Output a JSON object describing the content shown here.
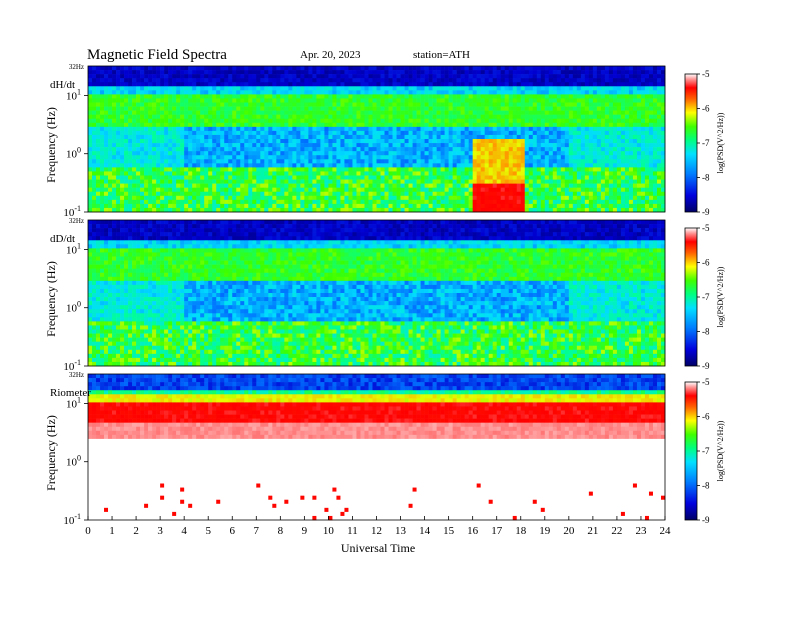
{
  "header": {
    "title": "Magnetic  Field  Spectra",
    "date": "Apr. 20, 2023",
    "station": "station=ATH"
  },
  "colors": {
    "scale": [
      "#000066",
      "#0000cc",
      "#0060ff",
      "#00c8ff",
      "#00f0a0",
      "#30ff30",
      "#c8ff00",
      "#ffd000",
      "#ff5000",
      "#ff0000",
      "#ff8080",
      "#ffe0e0",
      "#ffffff"
    ]
  },
  "chart_data": [
    {
      "type": "heatmap",
      "panel_label": "dH/dt",
      "top_label": "32Hz",
      "ylabel": "Frequency  (Hz)",
      "y_ticks": [
        {
          "base": "10",
          "exp": "1",
          "value": 10
        },
        {
          "base": "10",
          "exp": "0",
          "value": 1
        },
        {
          "base": "10",
          "exp": "-1",
          "value": 0.1
        }
      ],
      "colorbar": {
        "label": "log(PSD(V^2/Hz))",
        "ticks": [
          "-5",
          "-6",
          "-7",
          "-8",
          "-9"
        ],
        "range": [
          -9,
          -5
        ]
      },
      "x_range": [
        0,
        24
      ],
      "y_range_hz": [
        0.1,
        32
      ],
      "y_scale": "log",
      "bursts": [
        {
          "start": 16.0,
          "end": 18.2,
          "level": -5.3,
          "fmax_hz": 1.8
        }
      ]
    },
    {
      "type": "heatmap",
      "panel_label": "dD/dt",
      "top_label": "32Hz",
      "ylabel": "Frequency  (Hz)",
      "y_ticks": [
        {
          "base": "10",
          "exp": "1",
          "value": 10
        },
        {
          "base": "10",
          "exp": "0",
          "value": 1
        },
        {
          "base": "10",
          "exp": "-1",
          "value": 0.1
        }
      ],
      "colorbar": {
        "label": "log(PSD(V^2/Hz))",
        "ticks": [
          "-5",
          "-6",
          "-7",
          "-8",
          "-9"
        ],
        "range": [
          -9,
          -5
        ]
      },
      "x_range": [
        0,
        24
      ],
      "y_range_hz": [
        0.1,
        32
      ],
      "y_scale": "log",
      "bursts": []
    },
    {
      "type": "heatmap",
      "panel_label": "Riometer",
      "top_label": "32Hz",
      "ylabel": "Frequency  (Hz)",
      "y_ticks": [
        {
          "base": "10",
          "exp": "1",
          "value": 10
        },
        {
          "base": "10",
          "exp": "0",
          "value": 1
        },
        {
          "base": "10",
          "exp": "-1",
          "value": 0.1
        }
      ],
      "colorbar": {
        "label": "log(PSD(V^2/Hz))",
        "ticks": [
          "-5",
          "-6",
          "-7",
          "-8",
          "-9"
        ],
        "range": [
          -9,
          -5
        ]
      },
      "x_range": [
        0,
        24
      ],
      "y_range_hz": [
        0.1,
        32
      ],
      "y_scale": "log",
      "bursts": []
    }
  ],
  "x_axis": {
    "label": "Universal  Time",
    "ticks": [
      "0",
      "1",
      "2",
      "3",
      "4",
      "5",
      "6",
      "7",
      "8",
      "9",
      "10",
      "11",
      "12",
      "13",
      "14",
      "15",
      "16",
      "17",
      "18",
      "19",
      "20",
      "21",
      "22",
      "23",
      "24"
    ]
  }
}
